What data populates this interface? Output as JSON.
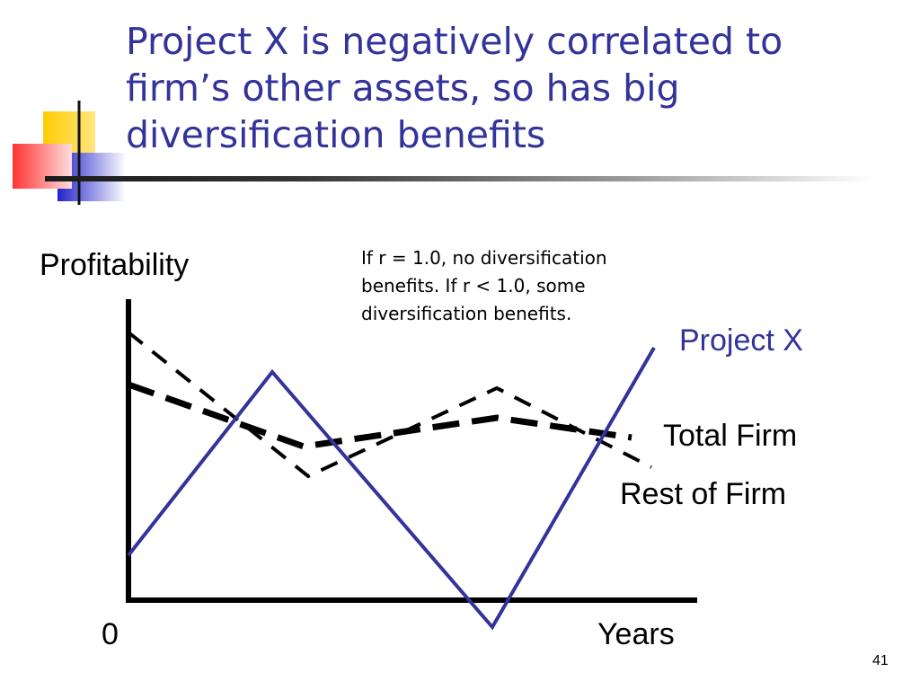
{
  "slide": {
    "title": "Project X is negatively correlated to firm’s other assets, so has big diversification benefits",
    "page_number": "41",
    "accent_color": "#33339a"
  },
  "diagram": {
    "y_axis_label": "Profitability",
    "x_axis_label": "Years",
    "origin_label": "0",
    "note": "If r = 1.0, no diversification benefits. If r < 1.0, some diversification benefits.",
    "series_labels": {
      "project_x": "Project X",
      "total_firm": "Total Firm",
      "rest_of_firm": "Rest  of Firm"
    }
  }
}
